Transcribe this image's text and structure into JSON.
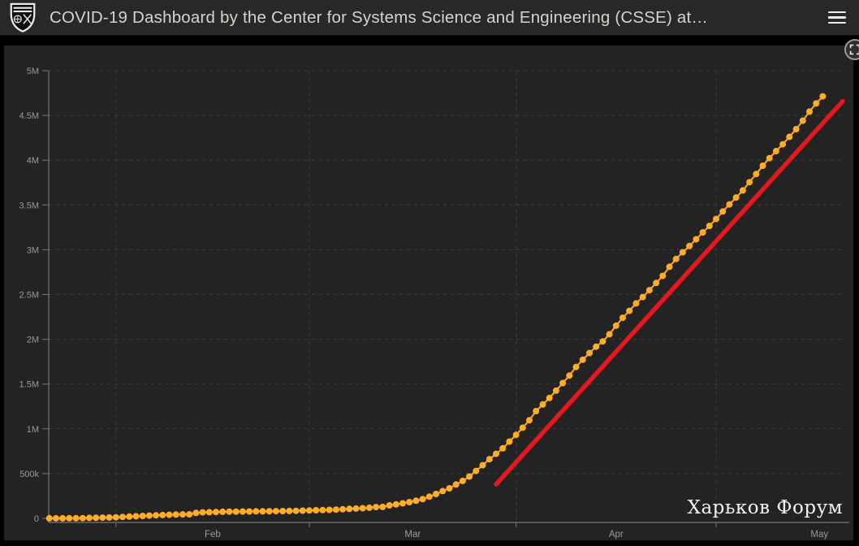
{
  "header": {
    "title": "COVID-19 Dashboard by the Center for Systems Science and Engineering (CSSE) at…",
    "logo": "johns-hopkins-shield",
    "menu_icon": "hamburger-icon"
  },
  "chart_panel": {
    "expand_icon": "expand-arrows-icon",
    "watermark": "Харьков Форум"
  },
  "colors": {
    "page_bg": "#000000",
    "header_bg": "#282828",
    "panel_bg": "#232323",
    "dot": "#FFAC28",
    "dot_line": "#F5A21F",
    "trend": "#E6171E",
    "grid": "#3E3E3E",
    "axis": "#787878",
    "tick_text": "#9B9B9B",
    "title_text": "#D6D3CD",
    "watermark_text": "#F2F2F2"
  },
  "chart_data": {
    "type": "scatter",
    "series_name": "cumulative-confirmed-cases",
    "start_date": "2020-01-22",
    "frequency": "daily",
    "ylim": [
      0,
      5000000
    ],
    "grid": "dashed",
    "y_ticks": [
      {
        "label": "0",
        "value": 0
      },
      {
        "label": "500k",
        "value": 500000
      },
      {
        "label": "1M",
        "value": 1000000
      },
      {
        "label": "1.5M",
        "value": 1500000
      },
      {
        "label": "2M",
        "value": 2000000
      },
      {
        "label": "2.5M",
        "value": 2500000
      },
      {
        "label": "3M",
        "value": 3000000
      },
      {
        "label": "3.5M",
        "value": 3500000
      },
      {
        "label": "4M",
        "value": 4000000
      },
      {
        "label": "4.5M",
        "value": 4500000
      },
      {
        "label": "5M",
        "value": 5000000
      }
    ],
    "x_ticks": [
      {
        "label": "Feb",
        "start_day": 10,
        "end_day": 39
      },
      {
        "label": "Mar",
        "start_day": 39,
        "end_day": 70
      },
      {
        "label": "Apr",
        "start_day": 70,
        "end_day": 100
      },
      {
        "label": "May",
        "start_day": 100,
        "end_day": 131
      }
    ],
    "values": [
      555,
      654,
      941,
      1434,
      2118,
      2927,
      5578,
      6166,
      8234,
      9927,
      12038,
      16787,
      19881,
      23892,
      27635,
      30817,
      34391,
      37120,
      40150,
      42762,
      44802,
      45221,
      60368,
      66885,
      69030,
      71224,
      73258,
      75136,
      75639,
      76197,
      76823,
      78579,
      78965,
      79568,
      80413,
      81395,
      82754,
      84120,
      86011,
      88369,
      90306,
      92840,
      95120,
      97882,
      101784,
      105821,
      109795,
      113561,
      118592,
      125865,
      128343,
      145193,
      156094,
      167446,
      181527,
      197142,
      214910,
      242708,
      272166,
      304524,
      335955,
      378235,
      418045,
      467653,
      529591,
      593291,
      660706,
      720140,
      782365,
      857487,
      932605,
      1013157,
      1095917,
      1197405,
      1272115,
      1345101,
      1426096,
      1511104,
      1595350,
      1691719,
      1771514,
      1846680,
      1917320,
      1976191,
      2056054,
      2152437,
      2240190,
      2317758,
      2401378,
      2472259,
      2549123,
      2628894,
      2708885,
      2810325,
      2897645,
      2971669,
      3041764,
      3116680,
      3193886,
      3267184,
      3343777,
      3427343,
      3506729,
      3583055,
      3662691,
      3755341,
      3845718,
      3938064,
      4024009,
      4101699,
      4177502,
      4261747,
      4347018,
      4442163,
      4542347,
      4634068,
      4713620
    ],
    "trendline": {
      "start": {
        "day": 67,
        "value": 380000
      },
      "end": {
        "day": 119,
        "value": 4660000
      }
    }
  }
}
